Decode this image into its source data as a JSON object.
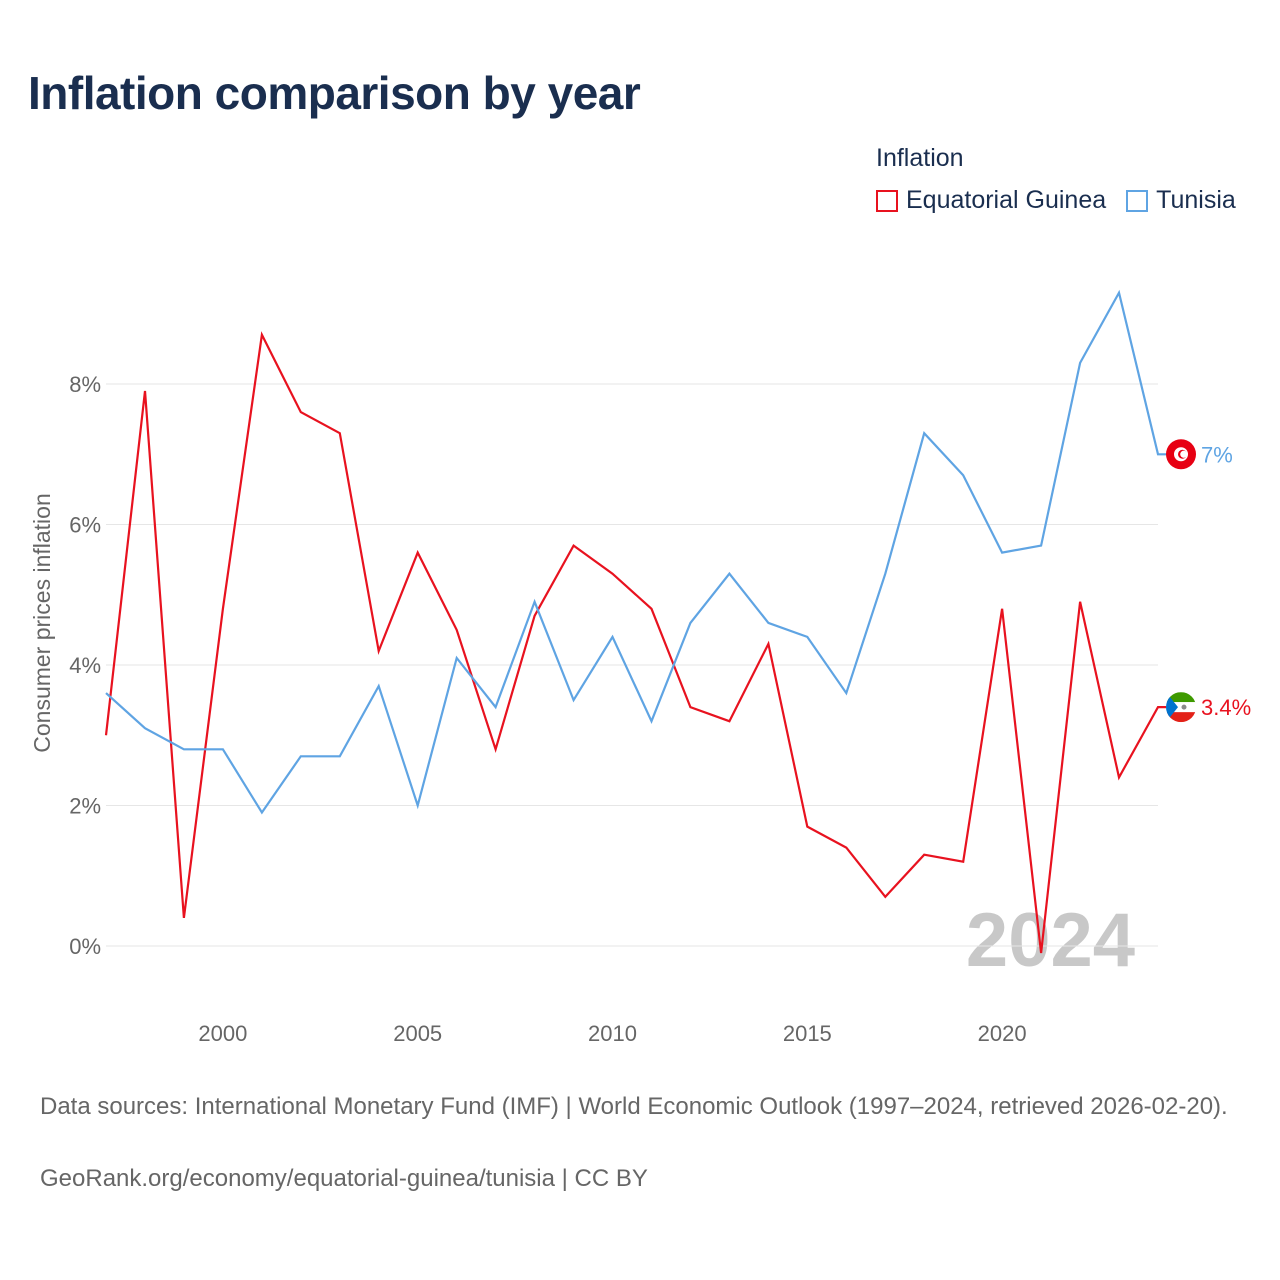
{
  "title": "Inflation comparison by year",
  "legend": {
    "title": "Inflation",
    "items": [
      {
        "label": "Equatorial Guinea",
        "color": "#e8121f"
      },
      {
        "label": "Tunisia",
        "color": "#5fa4e3"
      }
    ]
  },
  "chart_data": {
    "type": "line",
    "title": "Inflation comparison by year",
    "xlabel": "",
    "ylabel": "Consumer prices inflation",
    "xlim": [
      1997,
      2024
    ],
    "ylim": [
      -0.8,
      9.5
    ],
    "x_ticks": [
      2000,
      2005,
      2010,
      2015,
      2020
    ],
    "y_ticks": [
      0,
      2,
      4,
      6,
      8
    ],
    "y_tick_labels": [
      "0%",
      "2%",
      "4%",
      "6%",
      "8%"
    ],
    "grid": true,
    "year_watermark": "2024",
    "x": [
      1997,
      1998,
      1999,
      2000,
      2001,
      2002,
      2003,
      2004,
      2005,
      2006,
      2007,
      2008,
      2009,
      2010,
      2011,
      2012,
      2013,
      2014,
      2015,
      2016,
      2017,
      2018,
      2019,
      2020,
      2021,
      2022,
      2023,
      2024
    ],
    "series": [
      {
        "name": "Equatorial Guinea",
        "color": "#e8121f",
        "values": [
          3.0,
          7.9,
          0.4,
          4.8,
          8.7,
          7.6,
          7.3,
          4.2,
          5.6,
          4.5,
          2.8,
          4.7,
          5.7,
          5.3,
          4.8,
          3.4,
          3.2,
          4.3,
          1.7,
          1.4,
          0.7,
          1.3,
          1.2,
          4.8,
          -0.1,
          4.9,
          2.4,
          3.4
        ],
        "end_label": "3.4%"
      },
      {
        "name": "Tunisia",
        "color": "#5fa4e3",
        "values": [
          3.6,
          3.1,
          2.8,
          2.8,
          1.9,
          2.7,
          2.7,
          3.7,
          2.0,
          4.1,
          3.4,
          4.9,
          3.5,
          4.4,
          3.2,
          4.6,
          5.3,
          4.6,
          4.4,
          3.6,
          5.3,
          7.3,
          6.7,
          5.6,
          5.7,
          8.3,
          9.3,
          7.0
        ],
        "end_label": "7%"
      }
    ]
  },
  "footer": {
    "source": "Data sources: International Monetary Fund (IMF) | World Economic Outlook (1997–2024, retrieved 2026-02-20).",
    "link": "GeoRank.org/economy/equatorial-guinea/tunisia | CC BY"
  }
}
